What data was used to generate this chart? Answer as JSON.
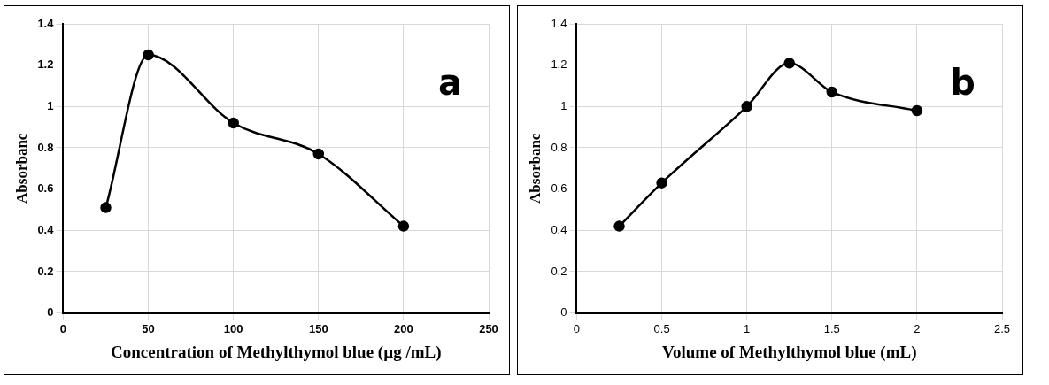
{
  "chart_data": [
    {
      "type": "line",
      "xlabel": "Concentration of Methylthymol blue (µg /mL)",
      "ylabel": "Absorbanc",
      "annotations": [
        "a"
      ],
      "x": [
        25,
        50,
        100,
        150,
        200
      ],
      "series": [
        {
          "color": "#000000",
          "values": [
            0.51,
            1.25,
            0.92,
            0.77,
            0.42
          ]
        }
      ],
      "xlim": [
        0,
        250
      ],
      "xticks": [
        0,
        50,
        100,
        150,
        200,
        250
      ],
      "ylim": [
        0,
        1.4
      ],
      "yticks": [
        0,
        0.2,
        0.4,
        0.6,
        0.8,
        1,
        1.2,
        1.4
      ],
      "grid": true,
      "legend": false,
      "marker": "circle",
      "line_style": "solid"
    },
    {
      "type": "line",
      "xlabel": "Volume of Methylthymol blue (mL)",
      "ylabel": "Absorbanc",
      "annotations": [
        "b"
      ],
      "x": [
        0.25,
        0.5,
        1,
        1.25,
        1.5,
        2
      ],
      "series": [
        {
          "color": "#000000",
          "values": [
            0.42,
            0.63,
            1.0,
            1.21,
            1.07,
            0.98
          ]
        }
      ],
      "xlim": [
        0,
        2.5
      ],
      "xticks": [
        0,
        0.5,
        1,
        1.5,
        2,
        2.5
      ],
      "ylim": [
        0,
        1.4
      ],
      "yticks": [
        0,
        0.2,
        0.4,
        0.6,
        0.8,
        1,
        1.2,
        1.4
      ],
      "grid": true,
      "legend": false,
      "marker": "circle",
      "line_style": "solid"
    }
  ]
}
